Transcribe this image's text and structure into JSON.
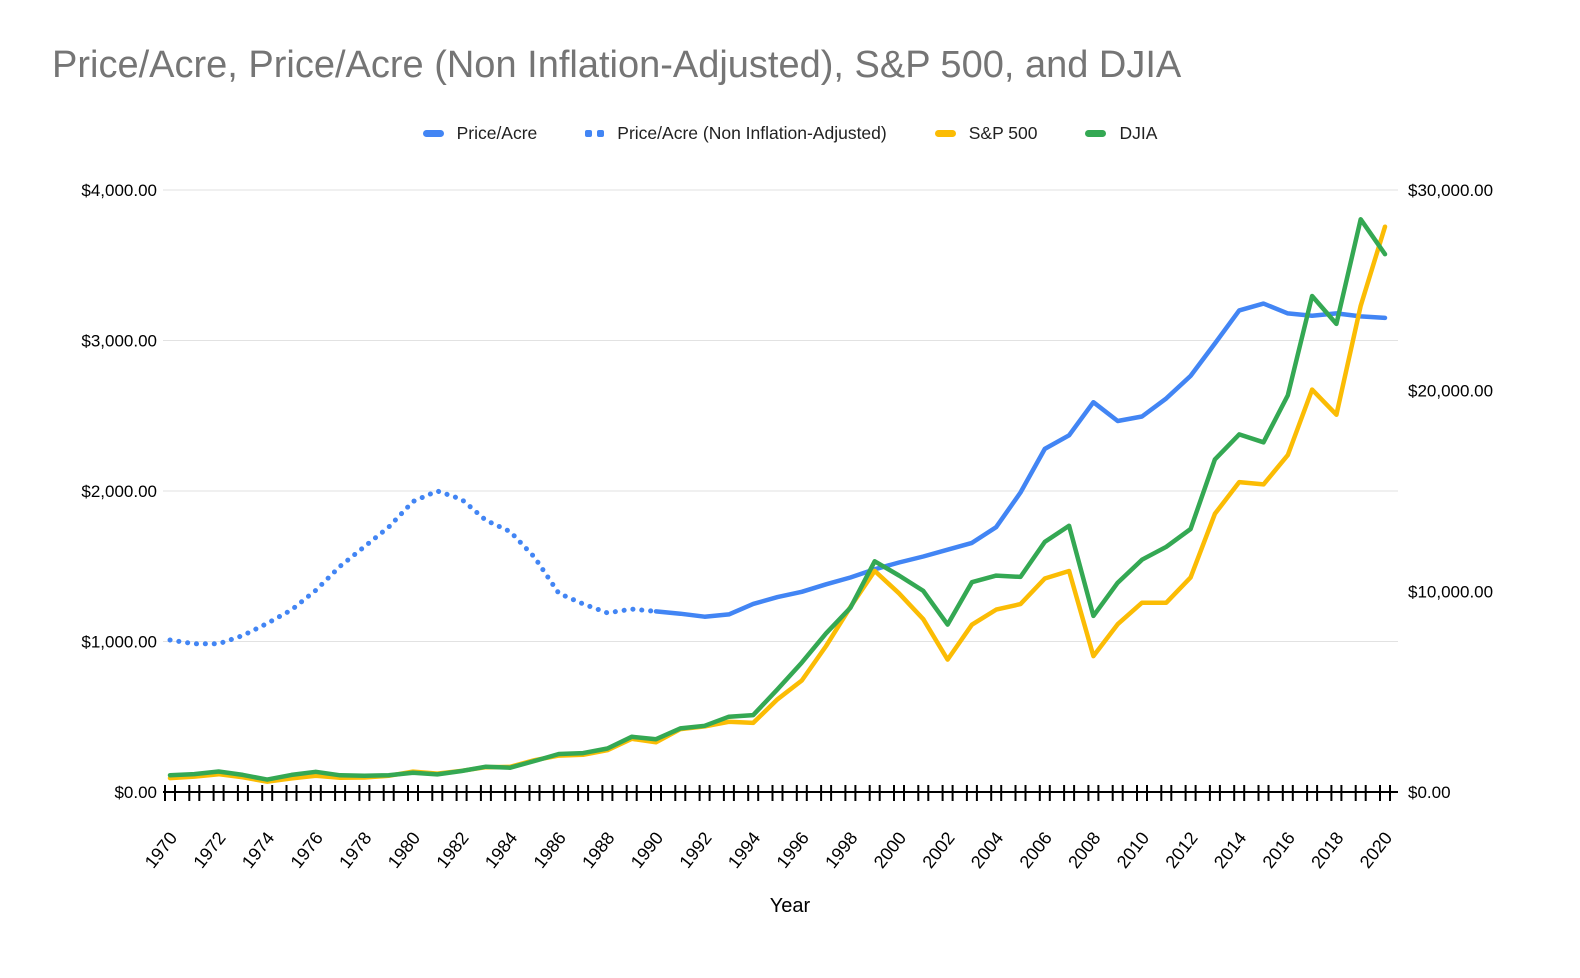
{
  "chart_data": {
    "type": "line",
    "title": "Price/Acre, Price/Acre (Non Inflation-Adjusted), S&P 500, and DJIA",
    "xlabel": "Year",
    "legend_position": "top",
    "grid": true,
    "background": "#FFFFFF",
    "title_color": "#757575",
    "grid_color": "#E2E2E2",
    "axis_color": "#000000",
    "x_range": [
      1970,
      2020
    ],
    "x_tick_labels": [
      "1970",
      "1972",
      "1974",
      "1976",
      "1978",
      "1980",
      "1982",
      "1984",
      "1986",
      "1988",
      "1990",
      "1992",
      "1994",
      "1996",
      "1998",
      "2000",
      "2002",
      "2004",
      "2006",
      "2008",
      "2010",
      "2012",
      "2014",
      "2016",
      "2018",
      "2020"
    ],
    "left_axis": {
      "range": [
        0,
        4000
      ],
      "tick_values": [
        0,
        1000,
        2000,
        3000,
        4000
      ],
      "tick_labels": [
        "$0.00",
        "$1,000.00",
        "$2,000.00",
        "$3,000.00",
        "$4,000.00"
      ]
    },
    "right_axis": {
      "range": [
        0,
        30000
      ],
      "tick_values": [
        0,
        10000,
        20000,
        30000
      ],
      "tick_labels": [
        "$0.00",
        "$10,000.00",
        "$20,000.00",
        "$30,000.00"
      ]
    },
    "series": [
      {
        "name": "Price/Acre",
        "color": "#4285F4",
        "axis": "left",
        "line_style": "solid",
        "start_year": 1990,
        "draw_order": 1,
        "values": [
          1200,
          1185,
          1165,
          1180,
          1250,
          1295,
          1330,
          1380,
          1425,
          1480,
          1525,
          1565,
          1610,
          1655,
          1760,
          1990,
          2280,
          2370,
          2590,
          2465,
          2495,
          2615,
          2765,
          2980,
          3200,
          3245,
          3180,
          3165,
          3180,
          3160,
          3150
        ]
      },
      {
        "name": "Price/Acre (Non Inflation-Adjusted)",
        "color": "#4285F4",
        "axis": "left",
        "line_style": "dotted",
        "start_year": 1970,
        "draw_order": 0,
        "values": [
          1010,
          985,
          985,
          1040,
          1120,
          1210,
          1340,
          1500,
          1630,
          1760,
          1930,
          2000,
          1945,
          1805,
          1730,
          1560,
          1320,
          1250,
          1190,
          1215,
          1200
        ]
      },
      {
        "name": "S&P 500",
        "color": "#FBBC04",
        "axis": "left",
        "line_style": "solid",
        "start_year": 1970,
        "draw_order": 2,
        "values": [
          92.15,
          102.09,
          118.05,
          97.55,
          68.56,
          90.19,
          107.46,
          95.1,
          96.11,
          107.94,
          135.76,
          122.55,
          140.64,
          164.93,
          167.24,
          211.28,
          242.17,
          247.08,
          277.72,
          353.4,
          330.22,
          417.09,
          435.71,
          466.45,
          459.27,
          615.93,
          740.74,
          970.43,
          1229.23,
          1469.25,
          1320.28,
          1148.08,
          879.82,
          1111.92,
          1211.92,
          1248.29,
          1418.3,
          1468.36,
          903.25,
          1115.1,
          1257.64,
          1257.6,
          1426.19,
          1848.36,
          2058.9,
          2043.94,
          2238.83,
          2673.61,
          2506.85,
          3230.78,
          3756.07
        ]
      },
      {
        "name": "DJIA",
        "color": "#34A853",
        "axis": "right",
        "line_style": "solid",
        "start_year": 1970,
        "draw_order": 3,
        "values": [
          838.92,
          890.2,
          1020.02,
          850.86,
          616.24,
          852.41,
          1004.65,
          831.17,
          805.01,
          838.74,
          963.99,
          875,
          1046.54,
          1258.64,
          1211.57,
          1546.67,
          1895.95,
          1938.83,
          2168.57,
          2753.2,
          2633.66,
          3168.83,
          3301.11,
          3754.09,
          3834.44,
          5117.12,
          6448.27,
          7908.25,
          9181.43,
          11497.12,
          10786.85,
          10021.5,
          8341.63,
          10453.92,
          10783.01,
          10717.5,
          12463.15,
          13264.82,
          8776.39,
          10428.05,
          11577.51,
          12217.56,
          13104.14,
          16576.66,
          17823.07,
          17425.03,
          19762.6,
          24719.22,
          23327.46,
          28538.44,
          26800
        ]
      }
    ]
  }
}
